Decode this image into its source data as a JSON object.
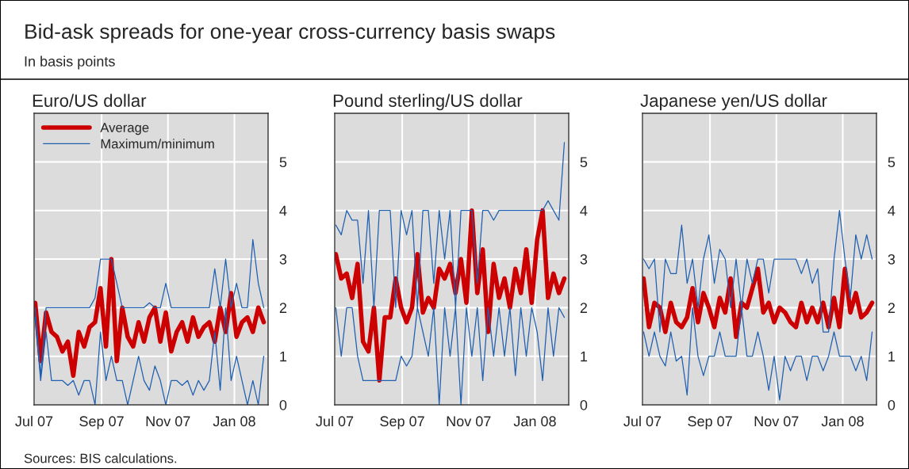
{
  "chart_data": [
    {
      "type": "other",
      "title": "Bid-ask spreads for one-year cross-currency basis swaps",
      "subtitle": "In basis points",
      "annotations": [
        "Sources: BIS calculations."
      ]
    },
    {
      "type": "line",
      "title": "Euro/US dollar",
      "legend": "top left",
      "grid": true,
      "xlim": [
        "2007-07-01",
        "2008-02-01"
      ],
      "ylim": [
        0,
        6
      ],
      "yticks": [
        0,
        1,
        2,
        3,
        4,
        5
      ],
      "xticks": [
        {
          "value": "2007-07-01",
          "label": "Jul 07"
        },
        {
          "value": "2007-09-01",
          "label": "Sep 07"
        },
        {
          "value": "2007-11-01",
          "label": "Nov 07"
        },
        {
          "value": "2008-01-01",
          "label": "Jan 08"
        }
      ],
      "x": [
        "2007-07-02",
        "2007-07-07",
        "2007-07-12",
        "2007-07-17",
        "2007-07-22",
        "2007-07-27",
        "2007-08-01",
        "2007-08-06",
        "2007-08-11",
        "2007-08-16",
        "2007-08-21",
        "2007-08-26",
        "2007-08-31",
        "2007-09-05",
        "2007-09-10",
        "2007-09-15",
        "2007-09-20",
        "2007-09-25",
        "2007-09-30",
        "2007-10-05",
        "2007-10-10",
        "2007-10-15",
        "2007-10-20",
        "2007-10-25",
        "2007-10-30",
        "2007-11-04",
        "2007-11-09",
        "2007-11-14",
        "2007-11-19",
        "2007-11-24",
        "2007-11-29",
        "2007-12-04",
        "2007-12-09",
        "2007-12-14",
        "2007-12-19",
        "2007-12-24",
        "2007-12-29",
        "2008-01-03",
        "2008-01-08",
        "2008-01-13",
        "2008-01-18",
        "2008-01-23",
        "2008-01-28"
      ],
      "series": [
        {
          "name": "Average",
          "color": "#cc0000",
          "values": [
            2.1,
            0.9,
            1.9,
            1.5,
            1.4,
            1.1,
            1.3,
            0.6,
            1.5,
            1.2,
            1.6,
            1.7,
            2.4,
            1.2,
            3.0,
            0.9,
            2.0,
            1.4,
            1.2,
            1.7,
            1.3,
            1.8,
            2.0,
            1.3,
            1.9,
            1.1,
            1.5,
            1.7,
            1.3,
            1.8,
            1.4,
            1.6,
            1.7,
            1.3,
            2.0,
            1.5,
            2.3,
            1.4,
            1.7,
            1.8,
            1.5,
            2.0,
            1.7
          ]
        },
        {
          "name": "Maximum/minimum",
          "color": "#1f5fb0",
          "values": [
            2.0,
            0.6,
            2.0,
            2.0,
            2.0,
            2.0,
            2.0,
            2.0,
            2.0,
            2.0,
            2.0,
            2.2,
            3.0,
            3.0,
            3.0,
            2.5,
            2.0,
            2.0,
            2.0,
            2.0,
            2.0,
            2.1,
            2.0,
            2.0,
            2.5,
            2.0,
            2.0,
            2.0,
            2.0,
            2.0,
            2.0,
            2.0,
            2.0,
            2.8,
            2.0,
            3.0,
            2.0,
            2.5,
            2.0,
            2.0,
            3.4,
            2.5,
            2.0
          ]
        },
        {
          "color": "#1f5fb0",
          "values": [
            1.8,
            0.5,
            1.5,
            0.5,
            0.5,
            0.5,
            0.4,
            0.5,
            0.2,
            0.5,
            0.5,
            0.0,
            1.5,
            0.5,
            1.0,
            0.5,
            0.5,
            0.0,
            0.5,
            1.0,
            0.5,
            0.3,
            0.8,
            0.5,
            0.0,
            0.5,
            0.5,
            0.4,
            0.5,
            0.2,
            0.5,
            0.3,
            0.5,
            1.5,
            0.3,
            2.0,
            0.5,
            1.0,
            0.5,
            0.0,
            0.5,
            0.0,
            1.0
          ]
        }
      ]
    },
    {
      "type": "line",
      "title": "Pound sterling/US dollar",
      "grid": true,
      "xlim": [
        "2007-07-01",
        "2008-02-01"
      ],
      "ylim": [
        0,
        6
      ],
      "yticks": [
        0,
        1,
        2,
        3,
        4,
        5
      ],
      "xticks": [
        {
          "value": "2007-07-01",
          "label": "Jul 07"
        },
        {
          "value": "2007-09-01",
          "label": "Sep 07"
        },
        {
          "value": "2007-11-01",
          "label": "Nov 07"
        },
        {
          "value": "2008-01-01",
          "label": "Jan 08"
        }
      ],
      "x": [
        "2007-07-02",
        "2007-07-07",
        "2007-07-12",
        "2007-07-17",
        "2007-07-22",
        "2007-07-27",
        "2007-08-01",
        "2007-08-06",
        "2007-08-11",
        "2007-08-16",
        "2007-08-21",
        "2007-08-26",
        "2007-08-31",
        "2007-09-05",
        "2007-09-10",
        "2007-09-15",
        "2007-09-20",
        "2007-09-25",
        "2007-09-30",
        "2007-10-05",
        "2007-10-10",
        "2007-10-15",
        "2007-10-20",
        "2007-10-25",
        "2007-10-30",
        "2007-11-04",
        "2007-11-09",
        "2007-11-14",
        "2007-11-19",
        "2007-11-24",
        "2007-11-29",
        "2007-12-04",
        "2007-12-09",
        "2007-12-14",
        "2007-12-19",
        "2007-12-24",
        "2007-12-29",
        "2008-01-03",
        "2008-01-08",
        "2008-01-13",
        "2008-01-18",
        "2008-01-23",
        "2008-01-28"
      ],
      "series": [
        {
          "color": "#cc0000",
          "values": [
            3.1,
            2.6,
            2.7,
            2.2,
            2.9,
            1.3,
            1.1,
            2.0,
            0.5,
            1.8,
            1.8,
            2.6,
            2.0,
            1.7,
            2.0,
            3.1,
            1.9,
            2.2,
            2.0,
            2.8,
            2.6,
            2.9,
            2.3,
            3.0,
            2.1,
            4.0,
            2.3,
            3.2,
            1.5,
            2.9,
            2.2,
            2.6,
            2.0,
            2.8,
            2.3,
            3.2,
            2.1,
            3.4,
            4.0,
            2.2,
            2.7,
            2.3,
            2.6
          ]
        },
        {
          "color": "#1f5fb0",
          "values": [
            3.7,
            3.5,
            4.0,
            3.8,
            3.8,
            2.5,
            4.0,
            2.0,
            4.0,
            4.0,
            4.0,
            2.0,
            4.0,
            3.5,
            4.0,
            2.0,
            4.0,
            4.0,
            2.5,
            4.0,
            3.0,
            4.0,
            2.0,
            4.0,
            4.0,
            4.0,
            2.5,
            4.0,
            4.0,
            3.8,
            4.0,
            4.0,
            4.0,
            4.0,
            4.0,
            4.0,
            4.0,
            4.0,
            4.0,
            4.2,
            4.0,
            3.8,
            5.4
          ]
        },
        {
          "color": "#1f5fb0",
          "values": [
            2.0,
            1.0,
            2.0,
            2.0,
            1.0,
            0.5,
            0.5,
            0.5,
            0.5,
            0.5,
            0.5,
            0.5,
            1.0,
            0.8,
            1.0,
            2.0,
            1.5,
            1.0,
            2.0,
            0.0,
            2.0,
            1.0,
            2.0,
            0.0,
            2.0,
            1.0,
            2.0,
            0.5,
            2.0,
            1.0,
            2.0,
            1.0,
            2.0,
            0.6,
            2.0,
            1.0,
            2.0,
            1.5,
            0.5,
            2.0,
            1.0,
            2.0,
            1.8
          ]
        }
      ]
    },
    {
      "type": "line",
      "title": "Japanese yen/US dollar",
      "grid": true,
      "xlim": [
        "2007-07-01",
        "2008-02-01"
      ],
      "ylim": [
        0,
        6
      ],
      "yticks": [
        0,
        1,
        2,
        3,
        4,
        5
      ],
      "xticks": [
        {
          "value": "2007-07-01",
          "label": "Jul 07"
        },
        {
          "value": "2007-09-01",
          "label": "Sep 07"
        },
        {
          "value": "2007-11-01",
          "label": "Nov 07"
        },
        {
          "value": "2008-01-01",
          "label": "Jan 08"
        }
      ],
      "x": [
        "2007-07-02",
        "2007-07-07",
        "2007-07-12",
        "2007-07-17",
        "2007-07-22",
        "2007-07-27",
        "2007-08-01",
        "2007-08-06",
        "2007-08-11",
        "2007-08-16",
        "2007-08-21",
        "2007-08-26",
        "2007-08-31",
        "2007-09-05",
        "2007-09-10",
        "2007-09-15",
        "2007-09-20",
        "2007-09-25",
        "2007-09-30",
        "2007-10-05",
        "2007-10-10",
        "2007-10-15",
        "2007-10-20",
        "2007-10-25",
        "2007-10-30",
        "2007-11-04",
        "2007-11-09",
        "2007-11-14",
        "2007-11-19",
        "2007-11-24",
        "2007-11-29",
        "2007-12-04",
        "2007-12-09",
        "2007-12-14",
        "2007-12-19",
        "2007-12-24",
        "2007-12-29",
        "2008-01-03",
        "2008-01-08",
        "2008-01-13",
        "2008-01-18",
        "2008-01-23",
        "2008-01-28"
      ],
      "series": [
        {
          "color": "#cc0000",
          "values": [
            2.6,
            1.6,
            2.1,
            2.0,
            1.5,
            2.1,
            1.7,
            1.6,
            1.8,
            2.4,
            1.7,
            2.3,
            2.0,
            1.6,
            2.2,
            1.9,
            2.6,
            1.4,
            2.1,
            2.0,
            2.4,
            2.8,
            1.9,
            2.1,
            1.7,
            2.0,
            1.9,
            1.7,
            1.6,
            2.1,
            1.7,
            2.0,
            1.7,
            2.1,
            1.6,
            2.2,
            1.6,
            2.8,
            1.9,
            2.3,
            1.8,
            1.9,
            2.1
          ]
        },
        {
          "color": "#1f5fb0",
          "values": [
            3.0,
            2.8,
            3.0,
            1.5,
            3.0,
            2.7,
            2.7,
            3.7,
            2.5,
            3.0,
            2.0,
            3.0,
            3.5,
            2.5,
            3.2,
            3.0,
            2.0,
            3.0,
            2.0,
            3.0,
            2.5,
            3.0,
            3.0,
            2.3,
            3.0,
            3.0,
            3.0,
            3.0,
            3.0,
            2.7,
            3.0,
            2.5,
            2.8,
            1.5,
            1.5,
            3.0,
            4.0,
            3.0,
            2.2,
            3.5,
            3.0,
            3.5,
            3.0
          ]
        },
        {
          "color": "#1f5fb0",
          "values": [
            1.5,
            1.0,
            1.5,
            1.0,
            0.8,
            1.5,
            0.9,
            1.0,
            0.2,
            2.0,
            1.0,
            0.6,
            1.0,
            1.0,
            1.5,
            1.0,
            1.0,
            1.0,
            2.0,
            1.0,
            1.0,
            1.5,
            1.0,
            0.3,
            1.0,
            0.1,
            1.0,
            0.7,
            1.0,
            1.0,
            0.5,
            1.0,
            1.0,
            0.7,
            1.0,
            1.5,
            1.0,
            1.0,
            1.0,
            0.7,
            1.0,
            0.5,
            1.5
          ]
        }
      ]
    }
  ]
}
